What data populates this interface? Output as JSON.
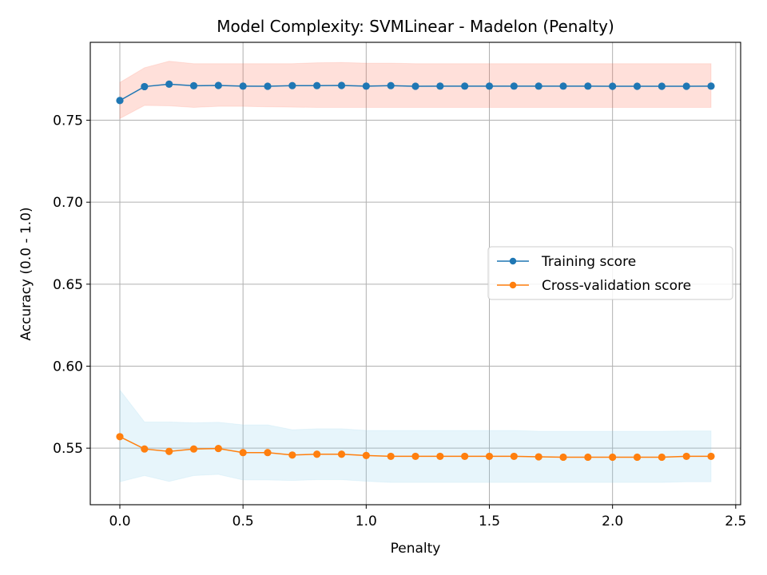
{
  "chart_data": {
    "type": "line",
    "title": "Model Complexity: SVMLinear - Madelon (Penalty)",
    "xlabel": "Penalty",
    "ylabel": "Accuracy (0.0 - 1.0)",
    "xlim": [
      -0.12,
      2.52
    ],
    "ylim": [
      0.5155,
      0.7975
    ],
    "xticks": [
      "0.0",
      "0.5",
      "1.0",
      "1.5",
      "2.0",
      "2.5"
    ],
    "yticks": [
      "0.55",
      "0.60",
      "0.65",
      "0.70",
      "0.75"
    ],
    "grid": true,
    "legend_position": "center-right",
    "x": [
      0.0,
      0.1,
      0.2,
      0.3,
      0.4,
      0.5,
      0.6,
      0.7,
      0.8,
      0.9,
      1.0,
      1.1,
      1.2,
      1.3,
      1.4,
      1.5,
      1.6,
      1.7,
      1.8,
      1.9,
      2.0,
      2.1,
      2.2,
      2.3,
      2.4
    ],
    "series": [
      {
        "name": "Training score",
        "color": "#1f77b4",
        "band_color": "#ff6347",
        "values": [
          0.762,
          0.7705,
          0.772,
          0.771,
          0.7712,
          0.7708,
          0.7707,
          0.7711,
          0.7711,
          0.7712,
          0.7708,
          0.7711,
          0.7707,
          0.7708,
          0.7708,
          0.7708,
          0.7708,
          0.7708,
          0.7708,
          0.7708,
          0.7707,
          0.7707,
          0.7707,
          0.7707,
          0.7708
        ],
        "band_upper": [
          0.773,
          0.782,
          0.786,
          0.7845,
          0.7845,
          0.7845,
          0.7845,
          0.7845,
          0.785,
          0.7852,
          0.7848,
          0.7848,
          0.7845,
          0.7845,
          0.7845,
          0.7845,
          0.7845,
          0.7845,
          0.7845,
          0.7845,
          0.7845,
          0.7845,
          0.7845,
          0.7845,
          0.7845
        ],
        "band_lower": [
          0.751,
          0.759,
          0.7588,
          0.7578,
          0.7585,
          0.7585,
          0.7582,
          0.758,
          0.7578,
          0.7578,
          0.7578,
          0.7578,
          0.7578,
          0.7578,
          0.7578,
          0.7578,
          0.7578,
          0.7578,
          0.7578,
          0.7578,
          0.7578,
          0.7578,
          0.7578,
          0.7578,
          0.7578
        ]
      },
      {
        "name": "Cross-validation score",
        "color": "#ff7f0e",
        "band_color": "#87ceeb",
        "values": [
          0.557,
          0.5495,
          0.548,
          0.5495,
          0.5498,
          0.5473,
          0.5473,
          0.5458,
          0.5463,
          0.5463,
          0.5455,
          0.545,
          0.545,
          0.545,
          0.545,
          0.545,
          0.545,
          0.5447,
          0.5445,
          0.5445,
          0.5445,
          0.5445,
          0.5445,
          0.545,
          0.545
        ],
        "band_upper": [
          0.5855,
          0.566,
          0.566,
          0.5655,
          0.5658,
          0.5642,
          0.5642,
          0.5612,
          0.5618,
          0.5618,
          0.5608,
          0.5608,
          0.5608,
          0.5608,
          0.5608,
          0.5608,
          0.5608,
          0.5603,
          0.5603,
          0.5603,
          0.5603,
          0.5603,
          0.5603,
          0.5605,
          0.5605
        ],
        "band_lower": [
          0.5295,
          0.5333,
          0.5297,
          0.5333,
          0.534,
          0.5306,
          0.5306,
          0.5303,
          0.5308,
          0.5308,
          0.5298,
          0.5291,
          0.5291,
          0.5291,
          0.5291,
          0.5291,
          0.5291,
          0.5291,
          0.5291,
          0.5291,
          0.5291,
          0.5291,
          0.5291,
          0.5295,
          0.5295
        ]
      }
    ]
  }
}
